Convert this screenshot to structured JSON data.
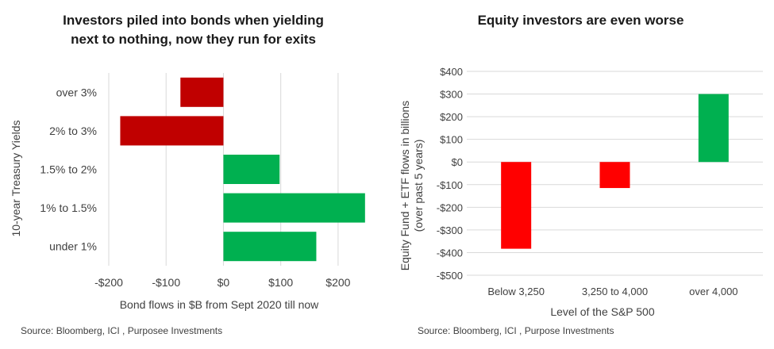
{
  "charts": {
    "left": {
      "title_line1": "Investors piled into bonds when yielding",
      "title_line2": "next to nothing, now they run for exits",
      "source": "Source: Bloomberg, ICI , Purposee Investments"
    },
    "right": {
      "title": "Equity investors are even worse",
      "source": "Source: Bloomberg, ICI , Purpose Investments"
    }
  },
  "colors": {
    "negative_left": "#c00000",
    "positive": "#00b050",
    "negative_right": "#ff0000",
    "gridline": "#d9d9d9",
    "axis": "#bfbfbf"
  },
  "chart_data": [
    {
      "type": "bar",
      "orientation": "horizontal",
      "title": "Investors piled into bonds when yielding next to nothing, now they run for exits",
      "categories": [
        "over 3%",
        "2% to 3%",
        "1.5% to 2%",
        "1% to 1.5%",
        "under 1%"
      ],
      "values": [
        -75,
        -180,
        98,
        247,
        162
      ],
      "xlabel": "Bond flows in $B from Sept 2020 till now",
      "ylabel": "10-year Treasury Yields",
      "xlim": [
        -200,
        250
      ],
      "xticks": [
        -200,
        -100,
        0,
        100,
        200
      ],
      "xtick_labels": [
        "-$200",
        "-$100",
        "$0",
        "$100",
        "$200"
      ],
      "grid": "vertical"
    },
    {
      "type": "bar",
      "orientation": "vertical",
      "title": "Equity investors are even worse",
      "categories": [
        "Below 3,250",
        "3,250 to 4,000",
        "over 4,000"
      ],
      "values": [
        -383,
        -115,
        300
      ],
      "xlabel": "Level of the S&P 500",
      "ylabel_line1": "Equity Fund + ETF flows in billions",
      "ylabel_line2": "(over past 5 years)",
      "ylim": [
        -500,
        400
      ],
      "yticks": [
        400,
        300,
        200,
        100,
        0,
        -100,
        -200,
        -300,
        -400,
        -500
      ],
      "ytick_labels": [
        "$400",
        "$300",
        "$200",
        "$100",
        "$0",
        "-$100",
        "-$200",
        "-$300",
        "-$400",
        "-$500"
      ],
      "grid": "horizontal"
    }
  ]
}
